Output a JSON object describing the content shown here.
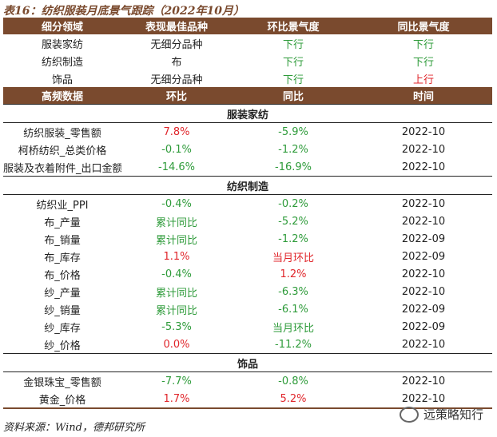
{
  "title": "表16：纺织服装月底景气跟踪（2022年10月）",
  "top_header": [
    "细分领域",
    "表现最佳品种",
    "环比景气度",
    "同比景气度"
  ],
  "top_rows": [
    {
      "sector": "服装家纺",
      "best": "无细分品种",
      "mom": "下行",
      "mom_color": "#2e9b3a",
      "yoy": "下行",
      "yoy_color": "#2e9b3a"
    },
    {
      "sector": "纺织制造",
      "best": "布",
      "mom": "下行",
      "mom_color": "#2e9b3a",
      "yoy": "下行",
      "yoy_color": "#2e9b3a"
    },
    {
      "sector": "饰品",
      "best": "无细分品种",
      "mom": "下行",
      "mom_color": "#2e9b3a",
      "yoy": "上行",
      "yoy_color": "#e0262b"
    }
  ],
  "hf_header": [
    "高频数据",
    "环比",
    "同比",
    "时间"
  ],
  "sections": [
    {
      "name": "服装家纺",
      "rows": [
        {
          "item": "纺织服装_零售额",
          "mom": "7.8%",
          "mom_c": "#e0262b",
          "yoy": "-5.9%",
          "yoy_c": "#2e9b3a",
          "time": "2022-10"
        },
        {
          "item": "柯桥纺织_总类价格",
          "mom": "-0.1%",
          "mom_c": "#2e9b3a",
          "yoy": "-1.2%",
          "yoy_c": "#2e9b3a",
          "time": "2022-10"
        },
        {
          "item": "服装及衣着附件_出口金额",
          "mom": "-14.6%",
          "mom_c": "#2e9b3a",
          "yoy": "-16.9%",
          "yoy_c": "#2e9b3a",
          "time": "2022-10"
        }
      ]
    },
    {
      "name": "纺织制造",
      "rows": [
        {
          "item": "纺织业_PPI",
          "mom": "-0.4%",
          "mom_c": "#2e9b3a",
          "yoy": "-0.2%",
          "yoy_c": "#2e9b3a",
          "time": "2022-10"
        },
        {
          "item": "布_产量",
          "mom": "累计同比",
          "mom_c": "#2e9b3a",
          "yoy": "-5.2%",
          "yoy_c": "#2e9b3a",
          "time": "2022-10"
        },
        {
          "item": "布_销量",
          "mom": "累计同比",
          "mom_c": "#2e9b3a",
          "yoy": "-1.2%",
          "yoy_c": "#2e9b3a",
          "time": "2022-09"
        },
        {
          "item": "布_库存",
          "mom": "1.1%",
          "mom_c": "#e0262b",
          "yoy": "当月环比",
          "yoy_c": "#e0262b",
          "time": "2022-09"
        },
        {
          "item": "布_价格",
          "mom": "-0.4%",
          "mom_c": "#2e9b3a",
          "yoy": "1.2%",
          "yoy_c": "#e0262b",
          "time": "2022-10"
        },
        {
          "item": "纱_产量",
          "mom": "累计同比",
          "mom_c": "#2e9b3a",
          "yoy": "-6.3%",
          "yoy_c": "#2e9b3a",
          "time": "2022-10"
        },
        {
          "item": "纱_销量",
          "mom": "累计同比",
          "mom_c": "#2e9b3a",
          "yoy": "-6.1%",
          "yoy_c": "#2e9b3a",
          "time": "2022-09"
        },
        {
          "item": "纱_库存",
          "mom": "-5.3%",
          "mom_c": "#2e9b3a",
          "yoy": "当月环比",
          "yoy_c": "#2e9b3a",
          "time": "2022-09"
        },
        {
          "item": "纱_价格",
          "mom": "0.0%",
          "mom_c": "#e0262b",
          "yoy": "-11.2%",
          "yoy_c": "#2e9b3a",
          "time": "2022-10"
        }
      ]
    },
    {
      "name": "饰品",
      "rows": [
        {
          "item": "金银珠宝_零售额",
          "mom": "-7.7%",
          "mom_c": "#2e9b3a",
          "yoy": "-0.8%",
          "yoy_c": "#2e9b3a",
          "time": "2022-10"
        },
        {
          "item": "黄金_价格",
          "mom": "1.7%",
          "mom_c": "#e0262b",
          "yoy": "5.2%",
          "yoy_c": "#e0262b",
          "time": "2022-10"
        }
      ]
    }
  ],
  "footer": "资料来源：Wind，德邦研究所",
  "watermark": "远策略知行",
  "colors": {
    "header_bg": "#7a4a2e",
    "up": "#e0262b",
    "down": "#2e9b3a"
  }
}
